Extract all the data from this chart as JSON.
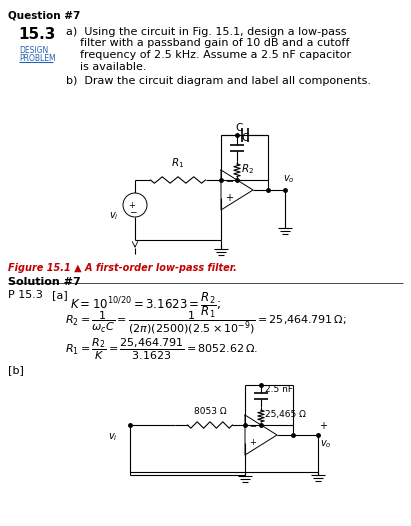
{
  "title": "Question #7",
  "q_num": "15.3",
  "design_text": "DESIGN",
  "problem_text": "PROBLEM",
  "part_a_lines": [
    "a)  Using the circuit in Fig. 15.1, design a low-pass",
    "    filter with a passband gain of 10 dB and a cutoff",
    "    frequency of 2.5 kHz. Assume a 2.5 nF capacitor",
    "    is available."
  ],
  "part_b": "b)  Draw the circuit diagram and label all components.",
  "fig_caption": "Figure 15.1 ▲ A first-order low-pass filter.",
  "sol_title": "Solution #7",
  "sol_prefix": "P 15.3",
  "sol_a": "[a]",
  "cap_val": "2.5 nF",
  "r2_val": "25,465 Ω",
  "r1_val": "8053 Ω",
  "part_b_label": "[b]",
  "bg": "#ffffff",
  "black": "#000000",
  "blue": "#2563b0",
  "red": "#c00000",
  "fig_w": 4.11,
  "fig_h": 5.26
}
